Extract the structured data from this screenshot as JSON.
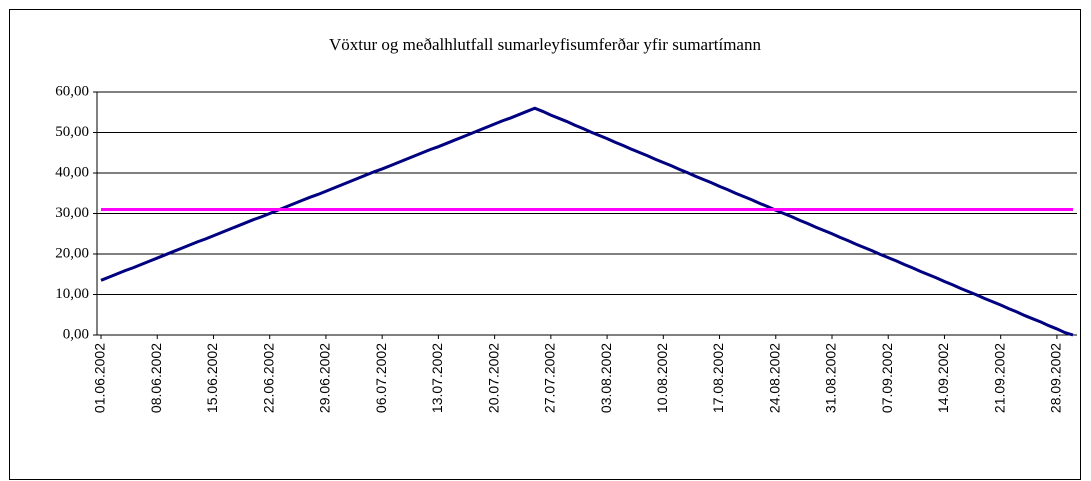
{
  "chart_data": {
    "type": "line",
    "title": "Vöxtur og meðalhlutfall sumarleyfisumferðar yfir sumartímann",
    "categories": [
      "01.06.2002",
      null,
      null,
      null,
      null,
      null,
      null,
      "08.06.2002",
      null,
      null,
      null,
      null,
      null,
      null,
      "15.06.2002",
      null,
      null,
      null,
      null,
      null,
      null,
      "22.06.2002",
      null,
      null,
      null,
      null,
      null,
      null,
      "29.06.2002",
      null,
      null,
      null,
      null,
      null,
      null,
      "06.07.2002",
      null,
      null,
      null,
      null,
      null,
      null,
      "13.07.2002",
      null,
      null,
      null,
      null,
      null,
      null,
      "20.07.2002",
      null,
      null,
      null,
      null,
      null,
      null,
      "27.07.2002",
      null,
      null,
      null,
      null,
      null,
      null,
      "03.08.2002",
      null,
      null,
      null,
      null,
      null,
      null,
      "10.08.2002",
      null,
      null,
      null,
      null,
      null,
      null,
      "17.08.2002",
      null,
      null,
      null,
      null,
      null,
      null,
      "24.08.2002",
      null,
      null,
      null,
      null,
      null,
      null,
      "31.08.2002",
      null,
      null,
      null,
      null,
      null,
      null,
      "07.09.2002",
      null,
      null,
      null,
      null,
      null,
      null,
      "14.09.2002",
      null,
      null,
      null,
      null,
      null,
      null,
      "21.09.2002",
      null,
      null,
      null,
      null,
      null,
      null,
      "28.09.2002",
      null,
      null
    ],
    "series": [
      {
        "color": "#000080",
        "values": [
          13.5,
          14.3,
          15.1,
          15.9,
          16.6,
          17.4,
          18.2,
          19.0,
          19.8,
          20.6,
          21.4,
          22.2,
          23.0,
          23.7,
          24.5,
          25.3,
          26.1,
          26.9,
          27.7,
          28.5,
          29.2,
          30.0,
          30.8,
          31.6,
          32.4,
          33.2,
          34.0,
          34.7,
          35.5,
          36.3,
          37.1,
          37.9,
          38.7,
          39.5,
          40.3,
          41.0,
          41.8,
          42.6,
          43.4,
          44.2,
          45.0,
          45.8,
          46.5,
          47.3,
          48.1,
          48.9,
          49.7,
          50.5,
          51.3,
          52.1,
          52.9,
          53.6,
          54.4,
          55.2,
          56.0,
          55.2,
          54.3,
          53.5,
          52.7,
          51.8,
          51.0,
          50.1,
          49.3,
          48.5,
          47.6,
          46.8,
          45.9,
          45.1,
          44.3,
          43.4,
          42.6,
          41.8,
          40.9,
          40.1,
          39.2,
          38.4,
          37.6,
          36.7,
          35.9,
          35.0,
          34.2,
          33.4,
          32.5,
          31.7,
          30.8,
          30.0,
          29.2,
          28.3,
          27.5,
          26.6,
          25.8,
          25.0,
          24.1,
          23.3,
          22.4,
          21.6,
          20.8,
          19.9,
          19.1,
          18.3,
          17.4,
          16.6,
          15.7,
          14.9,
          14.1,
          13.2,
          12.4,
          11.5,
          10.7,
          9.9,
          9.0,
          8.2,
          7.4,
          6.5,
          5.7,
          4.8,
          4.0,
          3.2,
          2.3,
          1.5,
          0.6,
          0.0
        ]
      },
      {
        "color": "#ff00ff",
        "values": [
          31,
          31,
          31,
          31,
          31,
          31,
          31,
          31,
          31,
          31,
          31,
          31,
          31,
          31,
          31,
          31,
          31,
          31,
          31,
          31,
          31,
          31,
          31,
          31,
          31,
          31,
          31,
          31,
          31,
          31,
          31,
          31,
          31,
          31,
          31,
          31,
          31,
          31,
          31,
          31,
          31,
          31,
          31,
          31,
          31,
          31,
          31,
          31,
          31,
          31,
          31,
          31,
          31,
          31,
          31,
          31,
          31,
          31,
          31,
          31,
          31,
          31,
          31,
          31,
          31,
          31,
          31,
          31,
          31,
          31,
          31,
          31,
          31,
          31,
          31,
          31,
          31,
          31,
          31,
          31,
          31,
          31,
          31,
          31,
          31,
          31,
          31,
          31,
          31,
          31,
          31,
          31,
          31,
          31,
          31,
          31,
          31,
          31,
          31,
          31,
          31,
          31,
          31,
          31,
          31,
          31,
          31,
          31,
          31,
          31,
          31,
          31,
          31,
          31,
          31,
          31,
          31,
          31,
          31,
          31,
          31,
          31
        ]
      }
    ],
    "ylim": [
      0,
      60
    ],
    "yticks": [
      {
        "value": 0,
        "label": "0,00"
      },
      {
        "value": 10,
        "label": "10,00"
      },
      {
        "value": 20,
        "label": "20,00"
      },
      {
        "value": 30,
        "label": "30,00"
      },
      {
        "value": 40,
        "label": "40,00"
      },
      {
        "value": 50,
        "label": "50,00"
      },
      {
        "value": 60,
        "label": "60,00"
      }
    ],
    "grid": true
  }
}
